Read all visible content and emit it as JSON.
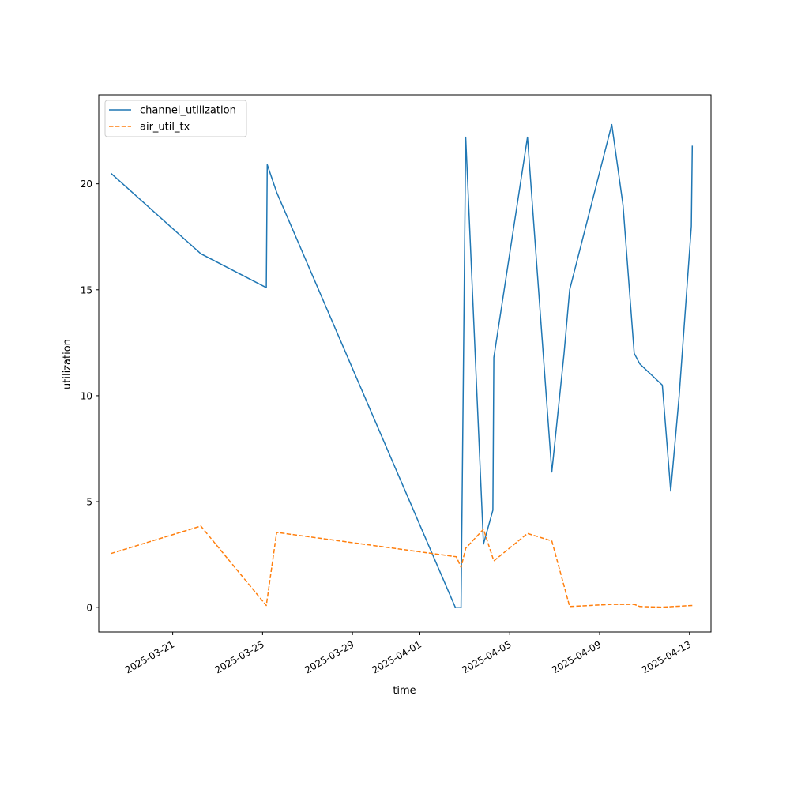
{
  "chart_data": {
    "type": "line",
    "title": "",
    "xlabel": "time",
    "ylabel": "utilization",
    "x_ticks": [
      "2025-03-21",
      "2025-03-25",
      "2025-03-29",
      "2025-04-01",
      "2025-04-05",
      "2025-04-09",
      "2025-04-13"
    ],
    "y_ticks": [
      0,
      5,
      10,
      15,
      20
    ],
    "xlim": [
      "2025-03-17T17:00",
      "2025-04-13T23:00"
    ],
    "ylim": [
      -1.15,
      24.2
    ],
    "grid": false,
    "legend_position": "top-left",
    "series": [
      {
        "name": "channel_utilization",
        "color": "#1f77b4",
        "linestyle": "solid",
        "points": [
          {
            "x": "2025-03-18T06:00",
            "y": 20.5
          },
          {
            "x": "2025-03-22T06:00",
            "y": 16.7
          },
          {
            "x": "2025-03-25T04:00",
            "y": 15.1
          },
          {
            "x": "2025-03-25T05:00",
            "y": 20.9
          },
          {
            "x": "2025-03-25T15:00",
            "y": 19.6
          },
          {
            "x": "2025-04-02T14:00",
            "y": 0.0
          },
          {
            "x": "2025-04-02T20:00",
            "y": 0.0
          },
          {
            "x": "2025-04-03T01:00",
            "y": 22.2
          },
          {
            "x": "2025-04-03T20:00",
            "y": 3.0
          },
          {
            "x": "2025-04-04T06:00",
            "y": 4.6
          },
          {
            "x": "2025-04-04T07:00",
            "y": 11.8
          },
          {
            "x": "2025-04-05T19:00",
            "y": 22.2
          },
          {
            "x": "2025-04-06T21:00",
            "y": 6.4
          },
          {
            "x": "2025-04-07T10:00",
            "y": 12.0
          },
          {
            "x": "2025-04-07T16:00",
            "y": 15.0
          },
          {
            "x": "2025-04-09T13:00",
            "y": 22.8
          },
          {
            "x": "2025-04-10T01:00",
            "y": 19.0
          },
          {
            "x": "2025-04-10T13:00",
            "y": 12.0
          },
          {
            "x": "2025-04-10T19:00",
            "y": 11.5
          },
          {
            "x": "2025-04-11T19:00",
            "y": 10.5
          },
          {
            "x": "2025-04-12T04:00",
            "y": 5.5
          },
          {
            "x": "2025-04-12T13:00",
            "y": 10.0
          },
          {
            "x": "2025-04-13T02:00",
            "y": 18.0
          },
          {
            "x": "2025-04-13T03:00",
            "y": 21.8
          }
        ]
      },
      {
        "name": "air_util_tx",
        "color": "#ff7f0e",
        "linestyle": "dashed",
        "points": [
          {
            "x": "2025-03-18T06:00",
            "y": 2.55
          },
          {
            "x": "2025-03-22T06:00",
            "y": 3.85
          },
          {
            "x": "2025-03-25T04:00",
            "y": 0.1
          },
          {
            "x": "2025-03-25T15:00",
            "y": 3.55
          },
          {
            "x": "2025-04-02T15:00",
            "y": 2.4
          },
          {
            "x": "2025-04-02T20:00",
            "y": 1.9
          },
          {
            "x": "2025-04-03T01:00",
            "y": 2.8
          },
          {
            "x": "2025-04-03T20:00",
            "y": 3.7
          },
          {
            "x": "2025-04-04T07:00",
            "y": 2.2
          },
          {
            "x": "2025-04-05T19:00",
            "y": 3.5
          },
          {
            "x": "2025-04-06T21:00",
            "y": 3.15
          },
          {
            "x": "2025-04-07T16:00",
            "y": 0.05
          },
          {
            "x": "2025-04-09T13:00",
            "y": 0.15
          },
          {
            "x": "2025-04-10T13:00",
            "y": 0.15
          },
          {
            "x": "2025-04-10T19:00",
            "y": 0.05
          },
          {
            "x": "2025-04-11T19:00",
            "y": 0.02
          },
          {
            "x": "2025-04-13T03:00",
            "y": 0.1
          }
        ]
      }
    ]
  }
}
